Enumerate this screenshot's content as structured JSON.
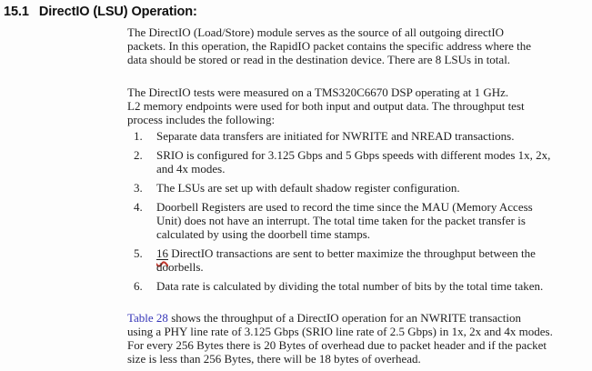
{
  "colors": {
    "text": "#1f1f1f",
    "link": "#3535b8",
    "squiggle": "#c0362c"
  },
  "heading": {
    "number": "15.1",
    "title": "DirectIO (LSU) Operation:"
  },
  "para1": {
    "lines": [
      "The DirectIO (Load/Store) module serves as the source of all outgoing directIO",
      "packets. In this operation, the RapidIO packet contains the specific address where the",
      "data should be stored or read in the destination device. There are 8 LSUs in total."
    ]
  },
  "para2": {
    "lines": [
      "The DirectIO tests were measured on a TMS320C6670 DSP operating at 1 GHz.",
      "L2 memory endpoints were used for both input and output data. The throughput test",
      "process includes the following:"
    ]
  },
  "list": {
    "items": [
      {
        "number": "1.",
        "lines": [
          "Separate data transfers are initiated for NWRITE and NREAD transactions."
        ]
      },
      {
        "number": "2.",
        "lines": [
          "SRIO is configured for 3.125 Gbps and 5 Gbps speeds with different modes 1x, 2x,",
          "and 4x modes."
        ]
      },
      {
        "number": "3.",
        "lines": [
          "The LSUs are set up with default shadow register configuration."
        ]
      },
      {
        "number": "4.",
        "lines": [
          "Doorbell Registers are used to record the time since the MAU (Memory Access",
          "Unit) does not have an interrupt. The total time taken for the packet transfer is",
          "calculated by using the doorbell time stamps."
        ]
      },
      {
        "number": "5.",
        "marked_text": "16",
        "line1_rest": " DirectIO transactions are sent to better maximize the throughput between the",
        "line2": "doorbells."
      },
      {
        "number": "6.",
        "lines": [
          "Data rate is calculated by dividing the total number of bits by the total time taken."
        ]
      }
    ]
  },
  "para3": {
    "link_text": "Table 28",
    "line1_rest": " shows the throughput of a DirectIO operation for an NWRITE transaction",
    "lines": [
      "using a PHY line rate of 3.125 Gbps (SRIO line rate of 2.5 Gbps) in 1x, 2x and 4x modes.",
      "For every 256 Bytes there is 20 Bytes of overhead due to packet header and if the packet",
      "size is less than 256 Bytes, there will be 18 bytes of overhead."
    ]
  }
}
